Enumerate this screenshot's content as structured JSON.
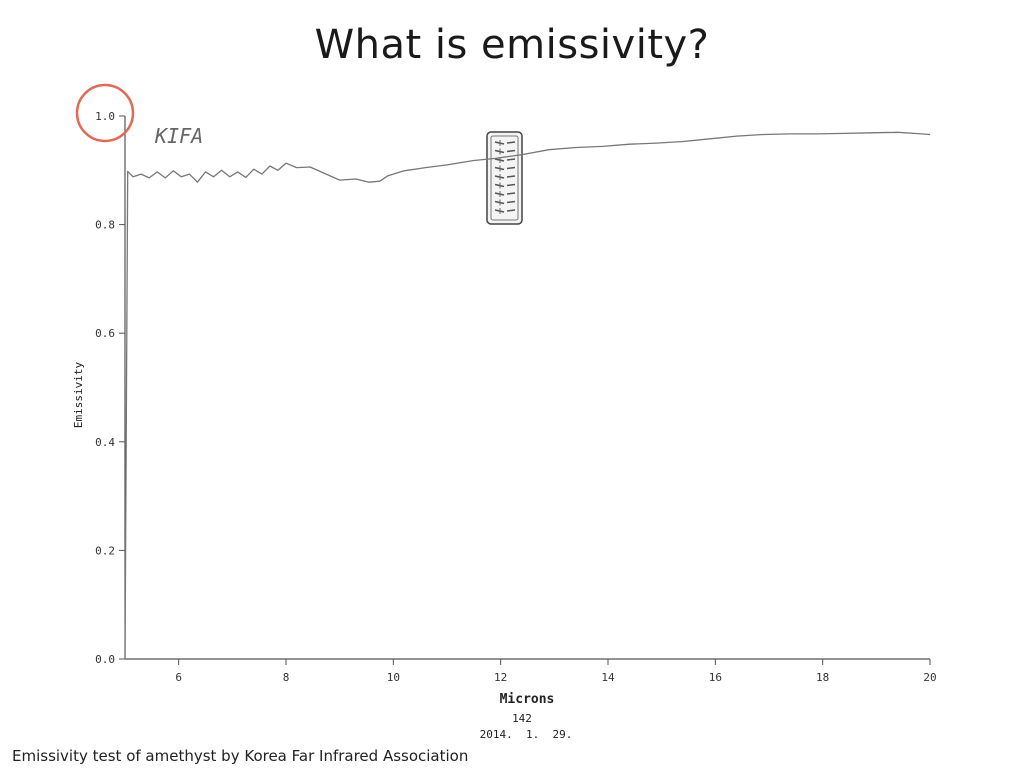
{
  "slide": {
    "title": "What is emissivity?",
    "caption": "Emissivity test of amethyst by Korea Far Infrared Association"
  },
  "colors": {
    "curve": "#777777",
    "axis": "#555555",
    "highlight_circle": "#e06a55"
  },
  "chart_data": {
    "type": "line",
    "title": "",
    "xlabel": "Microns",
    "ylabel": "Emissivity",
    "xlim": [
      5,
      20
    ],
    "ylim": [
      0,
      1
    ],
    "xticks": [
      6,
      8,
      10,
      12,
      14,
      16,
      18,
      20
    ],
    "yticks": [
      0.0,
      0.2,
      0.4,
      0.6,
      0.8,
      1.0
    ],
    "ytick_labels": [
      "0.0",
      "0.2",
      "0.4",
      "0.6",
      "0.8",
      "1.0"
    ],
    "grid": false,
    "annotations": {
      "brand": "KIFA",
      "sample_number": "142",
      "date": "2014.  1.  29.",
      "highlighted_tick": "1.0",
      "stamp": "seal"
    },
    "series": [
      {
        "x": [
          5.0,
          5.05,
          5.15,
          5.3,
          5.45,
          5.6,
          5.75,
          5.9,
          6.05,
          6.2,
          6.35,
          6.5,
          6.65,
          6.8,
          6.95,
          7.1,
          7.25,
          7.4,
          7.55,
          7.7,
          7.85,
          8.0,
          8.2,
          8.45,
          8.7,
          9.0,
          9.3,
          9.55,
          9.75,
          9.9,
          10.2,
          10.6,
          11.0,
          11.5,
          11.9,
          12.4,
          12.9,
          13.4,
          13.9,
          14.4,
          14.9,
          15.4,
          15.9,
          16.4,
          16.9,
          17.4,
          17.9,
          18.4,
          18.9,
          19.4,
          19.7,
          20.0
        ],
        "y": [
          0.0,
          0.898,
          0.888,
          0.893,
          0.886,
          0.897,
          0.886,
          0.899,
          0.888,
          0.893,
          0.878,
          0.897,
          0.888,
          0.9,
          0.888,
          0.897,
          0.887,
          0.902,
          0.893,
          0.908,
          0.9,
          0.913,
          0.905,
          0.906,
          0.895,
          0.882,
          0.884,
          0.878,
          0.88,
          0.89,
          0.899,
          0.905,
          0.91,
          0.918,
          0.922,
          0.929,
          0.938,
          0.942,
          0.944,
          0.948,
          0.95,
          0.953,
          0.958,
          0.963,
          0.966,
          0.967,
          0.967,
          0.968,
          0.969,
          0.97,
          0.968,
          0.966
        ]
      }
    ]
  }
}
